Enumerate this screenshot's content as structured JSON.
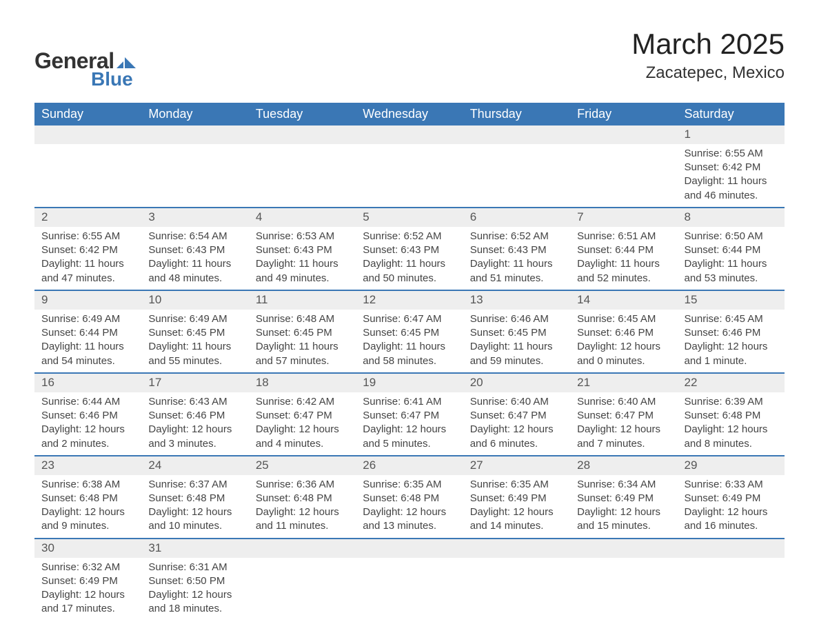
{
  "logo": {
    "general": "General",
    "blue": "Blue"
  },
  "title": "March 2025",
  "location": "Zacatepec, Mexico",
  "colors": {
    "header_bg": "#3a77b5",
    "header_text": "#ffffff",
    "daynum_bg": "#eeeeee",
    "row_divider": "#3a77b5",
    "body_text": "#444444",
    "background": "#ffffff"
  },
  "day_headers": [
    "Sunday",
    "Monday",
    "Tuesday",
    "Wednesday",
    "Thursday",
    "Friday",
    "Saturday"
  ],
  "weeks": [
    [
      null,
      null,
      null,
      null,
      null,
      null,
      {
        "n": "1",
        "sr": "Sunrise: 6:55 AM",
        "ss": "Sunset: 6:42 PM",
        "d1": "Daylight: 11 hours",
        "d2": "and 46 minutes."
      }
    ],
    [
      {
        "n": "2",
        "sr": "Sunrise: 6:55 AM",
        "ss": "Sunset: 6:42 PM",
        "d1": "Daylight: 11 hours",
        "d2": "and 47 minutes."
      },
      {
        "n": "3",
        "sr": "Sunrise: 6:54 AM",
        "ss": "Sunset: 6:43 PM",
        "d1": "Daylight: 11 hours",
        "d2": "and 48 minutes."
      },
      {
        "n": "4",
        "sr": "Sunrise: 6:53 AM",
        "ss": "Sunset: 6:43 PM",
        "d1": "Daylight: 11 hours",
        "d2": "and 49 minutes."
      },
      {
        "n": "5",
        "sr": "Sunrise: 6:52 AM",
        "ss": "Sunset: 6:43 PM",
        "d1": "Daylight: 11 hours",
        "d2": "and 50 minutes."
      },
      {
        "n": "6",
        "sr": "Sunrise: 6:52 AM",
        "ss": "Sunset: 6:43 PM",
        "d1": "Daylight: 11 hours",
        "d2": "and 51 minutes."
      },
      {
        "n": "7",
        "sr": "Sunrise: 6:51 AM",
        "ss": "Sunset: 6:44 PM",
        "d1": "Daylight: 11 hours",
        "d2": "and 52 minutes."
      },
      {
        "n": "8",
        "sr": "Sunrise: 6:50 AM",
        "ss": "Sunset: 6:44 PM",
        "d1": "Daylight: 11 hours",
        "d2": "and 53 minutes."
      }
    ],
    [
      {
        "n": "9",
        "sr": "Sunrise: 6:49 AM",
        "ss": "Sunset: 6:44 PM",
        "d1": "Daylight: 11 hours",
        "d2": "and 54 minutes."
      },
      {
        "n": "10",
        "sr": "Sunrise: 6:49 AM",
        "ss": "Sunset: 6:45 PM",
        "d1": "Daylight: 11 hours",
        "d2": "and 55 minutes."
      },
      {
        "n": "11",
        "sr": "Sunrise: 6:48 AM",
        "ss": "Sunset: 6:45 PM",
        "d1": "Daylight: 11 hours",
        "d2": "and 57 minutes."
      },
      {
        "n": "12",
        "sr": "Sunrise: 6:47 AM",
        "ss": "Sunset: 6:45 PM",
        "d1": "Daylight: 11 hours",
        "d2": "and 58 minutes."
      },
      {
        "n": "13",
        "sr": "Sunrise: 6:46 AM",
        "ss": "Sunset: 6:45 PM",
        "d1": "Daylight: 11 hours",
        "d2": "and 59 minutes."
      },
      {
        "n": "14",
        "sr": "Sunrise: 6:45 AM",
        "ss": "Sunset: 6:46 PM",
        "d1": "Daylight: 12 hours",
        "d2": "and 0 minutes."
      },
      {
        "n": "15",
        "sr": "Sunrise: 6:45 AM",
        "ss": "Sunset: 6:46 PM",
        "d1": "Daylight: 12 hours",
        "d2": "and 1 minute."
      }
    ],
    [
      {
        "n": "16",
        "sr": "Sunrise: 6:44 AM",
        "ss": "Sunset: 6:46 PM",
        "d1": "Daylight: 12 hours",
        "d2": "and 2 minutes."
      },
      {
        "n": "17",
        "sr": "Sunrise: 6:43 AM",
        "ss": "Sunset: 6:46 PM",
        "d1": "Daylight: 12 hours",
        "d2": "and 3 minutes."
      },
      {
        "n": "18",
        "sr": "Sunrise: 6:42 AM",
        "ss": "Sunset: 6:47 PM",
        "d1": "Daylight: 12 hours",
        "d2": "and 4 minutes."
      },
      {
        "n": "19",
        "sr": "Sunrise: 6:41 AM",
        "ss": "Sunset: 6:47 PM",
        "d1": "Daylight: 12 hours",
        "d2": "and 5 minutes."
      },
      {
        "n": "20",
        "sr": "Sunrise: 6:40 AM",
        "ss": "Sunset: 6:47 PM",
        "d1": "Daylight: 12 hours",
        "d2": "and 6 minutes."
      },
      {
        "n": "21",
        "sr": "Sunrise: 6:40 AM",
        "ss": "Sunset: 6:47 PM",
        "d1": "Daylight: 12 hours",
        "d2": "and 7 minutes."
      },
      {
        "n": "22",
        "sr": "Sunrise: 6:39 AM",
        "ss": "Sunset: 6:48 PM",
        "d1": "Daylight: 12 hours",
        "d2": "and 8 minutes."
      }
    ],
    [
      {
        "n": "23",
        "sr": "Sunrise: 6:38 AM",
        "ss": "Sunset: 6:48 PM",
        "d1": "Daylight: 12 hours",
        "d2": "and 9 minutes."
      },
      {
        "n": "24",
        "sr": "Sunrise: 6:37 AM",
        "ss": "Sunset: 6:48 PM",
        "d1": "Daylight: 12 hours",
        "d2": "and 10 minutes."
      },
      {
        "n": "25",
        "sr": "Sunrise: 6:36 AM",
        "ss": "Sunset: 6:48 PM",
        "d1": "Daylight: 12 hours",
        "d2": "and 11 minutes."
      },
      {
        "n": "26",
        "sr": "Sunrise: 6:35 AM",
        "ss": "Sunset: 6:48 PM",
        "d1": "Daylight: 12 hours",
        "d2": "and 13 minutes."
      },
      {
        "n": "27",
        "sr": "Sunrise: 6:35 AM",
        "ss": "Sunset: 6:49 PM",
        "d1": "Daylight: 12 hours",
        "d2": "and 14 minutes."
      },
      {
        "n": "28",
        "sr": "Sunrise: 6:34 AM",
        "ss": "Sunset: 6:49 PM",
        "d1": "Daylight: 12 hours",
        "d2": "and 15 minutes."
      },
      {
        "n": "29",
        "sr": "Sunrise: 6:33 AM",
        "ss": "Sunset: 6:49 PM",
        "d1": "Daylight: 12 hours",
        "d2": "and 16 minutes."
      }
    ],
    [
      {
        "n": "30",
        "sr": "Sunrise: 6:32 AM",
        "ss": "Sunset: 6:49 PM",
        "d1": "Daylight: 12 hours",
        "d2": "and 17 minutes."
      },
      {
        "n": "31",
        "sr": "Sunrise: 6:31 AM",
        "ss": "Sunset: 6:50 PM",
        "d1": "Daylight: 12 hours",
        "d2": "and 18 minutes."
      },
      null,
      null,
      null,
      null,
      null
    ]
  ]
}
